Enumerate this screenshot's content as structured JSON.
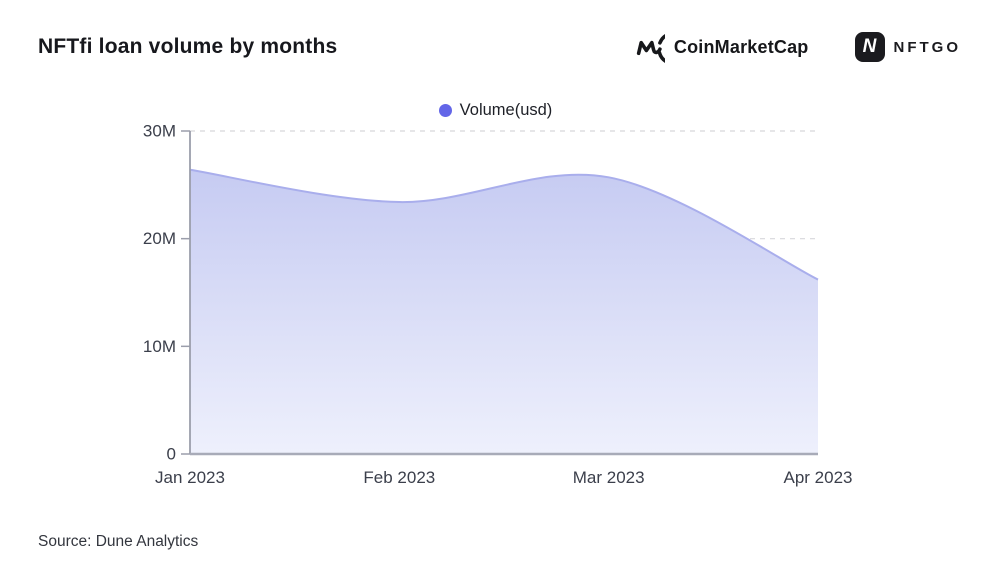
{
  "header": {
    "title": "NFTfi loan volume by months"
  },
  "logos": {
    "coinmarketcap": {
      "label": "CoinMarketCap"
    },
    "nftgo": {
      "label": "NFTGO",
      "icon_letter": "N"
    }
  },
  "legend": {
    "label": "Volume(usd)"
  },
  "source": {
    "label": "Source: Dune Analytics"
  },
  "colors": {
    "accent": "#6366e8",
    "area_top": "#c6cbf2",
    "area_bottom": "#eef0fc",
    "line": "#a9aeec",
    "grid": "#d7d7db",
    "axis": "#9b9eab",
    "baseline": "#a8abb8",
    "tick_text": "#3b3f4b",
    "title_text": "#17181d"
  },
  "chart_data": {
    "type": "area",
    "title": "NFTfi loan volume by months",
    "categories": [
      "Jan 2023",
      "Feb 2023",
      "Mar 2023",
      "Apr 2023"
    ],
    "series": [
      {
        "name": "Volume(usd)",
        "values": [
          26400000,
          23400000,
          25700000,
          16200000
        ]
      }
    ],
    "xlabel": "",
    "ylabel": "",
    "ylim": [
      0,
      30000000
    ],
    "yticks": [
      {
        "value": 0,
        "label": "0"
      },
      {
        "value": 10000000,
        "label": "10M"
      },
      {
        "value": 20000000,
        "label": "20M"
      },
      {
        "value": 30000000,
        "label": "30M"
      }
    ],
    "grid": "dashed-horizontal",
    "legend_position": "top-center",
    "smooth": true,
    "fill_gradient": true
  }
}
